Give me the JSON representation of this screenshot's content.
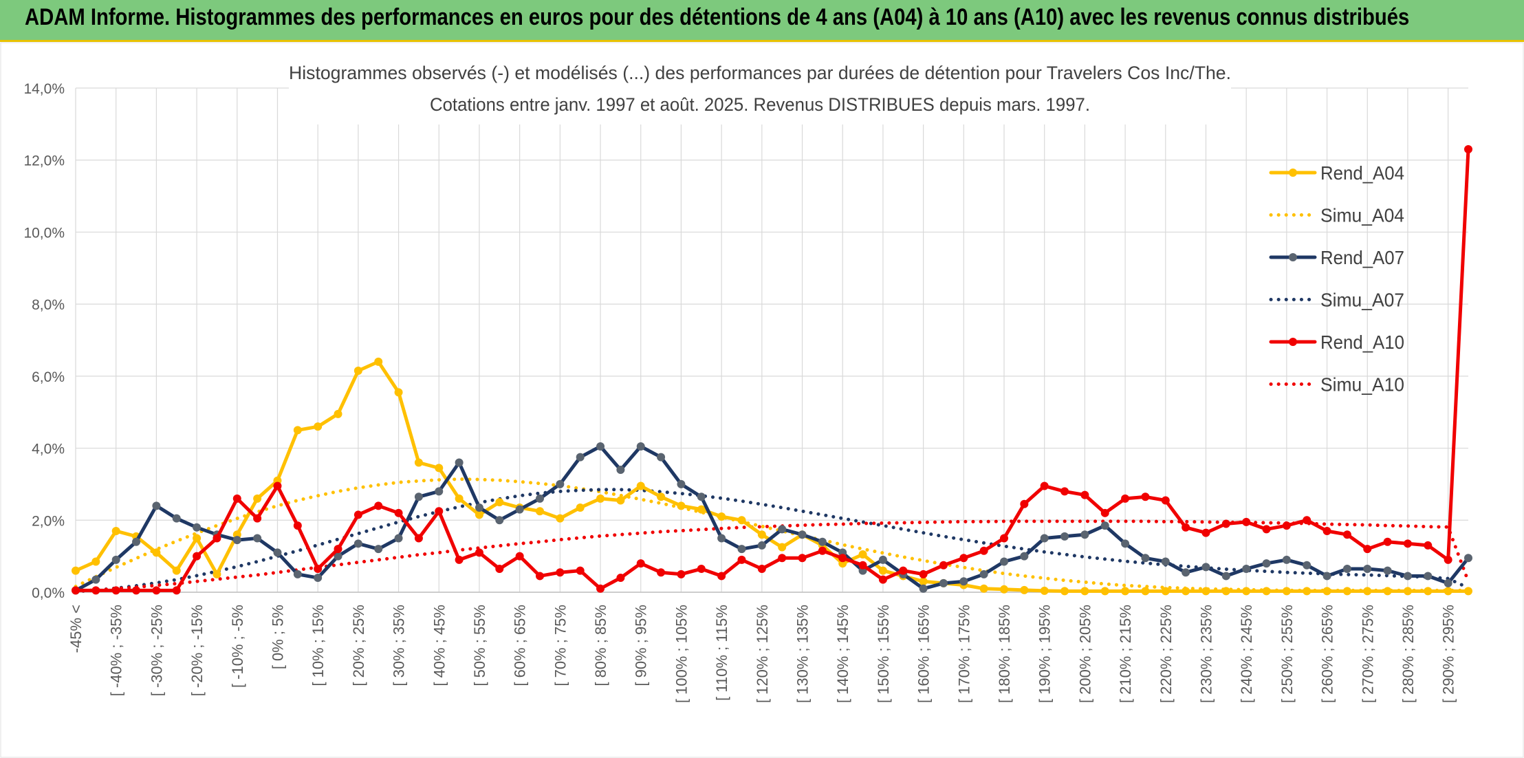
{
  "header": {
    "title": "ADAM Informe. Histogrammes des performances en euros pour des détentions de 4 ans (A04) à 10 ans (A10) avec les revenus connus distribués"
  },
  "colors": {
    "banner": "#7dc97d",
    "A04": "#ffc000",
    "A07": "#1f3864",
    "A07_marker": "#5a6470",
    "A10": "#f00000",
    "grid": "#d9d9d9"
  },
  "chart_data": {
    "type": "line",
    "title": "Histogrammes observés (-) et modélisés (...) des performances par durées de détention pour Travelers Cos Inc/The.",
    "subtitle": "Cotations entre janv. 1997 et août. 2025. Revenus DISTRIBUES depuis mars. 1997.",
    "ylim": [
      0,
      14
    ],
    "yticks": [
      "0,0%",
      "2,0%",
      "4,0%",
      "6,0%",
      "8,0%",
      "10,0%",
      "12,0%",
      "14,0%"
    ],
    "grid": true,
    "legend_position": "right",
    "x_labels": [
      "-45% <",
      "[ -40% ; -35%",
      "[ -30% ; -25%",
      "[ -20% ; -15%",
      "[ -10% ; -5%",
      "[ 0% ; 5%",
      "[ 10% ; 15%",
      "[ 20% ; 25%",
      "[ 30% ; 35%",
      "[ 40% ; 45%",
      "[ 50% ; 55%",
      "[ 60% ; 65%",
      "[ 70% ; 75%",
      "[ 80% ; 85%",
      "[ 90% ; 95%",
      "[ 100% ; 105%",
      "[ 110% ; 115%",
      "[ 120% ; 125%",
      "[ 130% ; 135%",
      "[ 140% ; 145%",
      "[ 150% ; 155%",
      "[ 160% ; 165%",
      "[ 170% ; 175%",
      "[ 180% ; 185%",
      "[ 190% ; 195%",
      "[ 200% ; 205%",
      "[ 210% ; 215%",
      "[ 220% ; 225%",
      "[ 230% ; 235%",
      "[ 240% ; 245%",
      "[ 250% ; 255%",
      "[ 260% ; 265%",
      "[ 270% ; 275%",
      "[ 280% ; 285%",
      "[ 290% ; 295%"
    ],
    "series": [
      {
        "name": "Rend_A04",
        "style": "solid",
        "color": "#ffc000",
        "values": [
          0.6,
          0.85,
          1.7,
          1.55,
          1.1,
          0.6,
          1.5,
          0.5,
          1.6,
          2.6,
          3.1,
          4.5,
          4.6,
          4.95,
          6.15,
          6.4,
          5.55,
          3.6,
          3.45,
          2.6,
          2.15,
          2.5,
          2.35,
          2.25,
          2.05,
          2.35,
          2.6,
          2.55,
          2.95,
          2.65,
          2.4,
          2.3,
          2.1,
          2.0,
          1.6,
          1.25,
          1.6,
          1.3,
          0.8,
          1.05,
          0.6,
          0.45,
          0.3,
          0.25,
          0.2,
          0.1,
          0.08,
          0.06,
          0.04,
          0.03,
          0.03,
          0.03,
          0.03,
          0.03,
          0.03,
          0.03,
          0.03,
          0.03,
          0.03,
          0.03,
          0.03,
          0.03,
          0.03,
          0.03,
          0.03,
          0.03,
          0.03,
          0.03,
          0.03,
          0.03
        ]
      },
      {
        "name": "Simu_A04",
        "style": "dotted",
        "color": "#ffc000",
        "values": [
          0.16,
          0.43,
          0.69,
          0.94,
          1.19,
          1.42,
          1.64,
          1.85,
          2.05,
          2.23,
          2.4,
          2.55,
          2.68,
          2.8,
          2.9,
          2.98,
          3.05,
          3.09,
          3.12,
          3.14,
          3.13,
          3.11,
          3.07,
          3.02,
          2.96,
          2.88,
          2.79,
          2.69,
          2.58,
          2.47,
          2.35,
          2.22,
          2.09,
          1.96,
          1.83,
          1.7,
          1.57,
          1.45,
          1.32,
          1.2,
          1.09,
          0.98,
          0.88,
          0.78,
          0.69,
          0.6,
          0.52,
          0.45,
          0.39,
          0.33,
          0.28,
          0.23,
          0.19,
          0.16,
          0.13,
          0.11,
          0.09,
          0.08,
          0.07,
          0.06,
          0.05,
          0.05,
          0.05,
          0.05,
          0.05,
          0.05,
          0.05,
          0.05,
          0.05,
          0.05
        ]
      },
      {
        "name": "Rend_A07",
        "style": "solid",
        "color": "#1f3864",
        "values": [
          0.05,
          0.35,
          0.9,
          1.4,
          2.4,
          2.05,
          1.8,
          1.6,
          1.45,
          1.5,
          1.1,
          0.5,
          0.4,
          1.0,
          1.35,
          1.2,
          1.5,
          2.65,
          2.8,
          3.6,
          2.35,
          2.0,
          2.3,
          2.6,
          3.0,
          3.75,
          4.05,
          3.4,
          4.05,
          3.75,
          3.0,
          2.65,
          1.5,
          1.2,
          1.3,
          1.75,
          1.6,
          1.4,
          1.1,
          0.6,
          0.9,
          0.5,
          0.1,
          0.25,
          0.3,
          0.5,
          0.85,
          1.0,
          1.5,
          1.55,
          1.6,
          1.85,
          1.35,
          0.95,
          0.85,
          0.55,
          0.7,
          0.45,
          0.65,
          0.8,
          0.9,
          0.75,
          0.45,
          0.65,
          0.65,
          0.6,
          0.45,
          0.45,
          0.25,
          0.95
        ]
      },
      {
        "name": "Simu_A07",
        "style": "dotted",
        "color": "#1f3864",
        "values": [
          0.02,
          0.06,
          0.11,
          0.18,
          0.26,
          0.35,
          0.46,
          0.58,
          0.71,
          0.85,
          1.0,
          1.15,
          1.31,
          1.47,
          1.63,
          1.79,
          1.95,
          2.1,
          2.24,
          2.37,
          2.49,
          2.59,
          2.68,
          2.75,
          2.8,
          2.83,
          2.85,
          2.85,
          2.83,
          2.79,
          2.74,
          2.68,
          2.61,
          2.53,
          2.44,
          2.35,
          2.25,
          2.15,
          2.05,
          1.95,
          1.85,
          1.75,
          1.65,
          1.55,
          1.46,
          1.37,
          1.28,
          1.2,
          1.12,
          1.05,
          0.98,
          0.92,
          0.86,
          0.81,
          0.76,
          0.72,
          0.68,
          0.64,
          0.61,
          0.58,
          0.55,
          0.53,
          0.51,
          0.49,
          0.48,
          0.46,
          0.44,
          0.42,
          0.38,
          0.12
        ]
      },
      {
        "name": "Rend_A10",
        "style": "solid",
        "color": "#f00000",
        "values": [
          0.05,
          0.05,
          0.05,
          0.05,
          0.05,
          0.05,
          1.0,
          1.5,
          2.6,
          2.05,
          2.95,
          1.85,
          0.65,
          1.2,
          2.15,
          2.4,
          2.2,
          1.5,
          2.25,
          0.9,
          1.1,
          0.65,
          1.0,
          0.45,
          0.55,
          0.6,
          0.1,
          0.4,
          0.8,
          0.55,
          0.5,
          0.65,
          0.45,
          0.9,
          0.65,
          0.95,
          0.95,
          1.15,
          0.95,
          0.75,
          0.35,
          0.6,
          0.5,
          0.75,
          0.95,
          1.15,
          1.5,
          2.45,
          2.95,
          2.8,
          2.7,
          2.2,
          2.6,
          2.65,
          2.55,
          1.8,
          1.65,
          1.9,
          1.95,
          1.75,
          1.85,
          2.0,
          1.7,
          1.6,
          1.2,
          1.4,
          1.35,
          1.3,
          0.9,
          12.3
        ]
      },
      {
        "name": "Simu_A10",
        "style": "dotted",
        "color": "#f00000",
        "values": [
          0.03,
          0.06,
          0.1,
          0.14,
          0.19,
          0.24,
          0.3,
          0.36,
          0.42,
          0.48,
          0.55,
          0.62,
          0.69,
          0.76,
          0.83,
          0.9,
          0.97,
          1.04,
          1.1,
          1.17,
          1.23,
          1.29,
          1.35,
          1.4,
          1.46,
          1.51,
          1.56,
          1.6,
          1.64,
          1.68,
          1.71,
          1.74,
          1.77,
          1.8,
          1.82,
          1.84,
          1.86,
          1.88,
          1.89,
          1.91,
          1.92,
          1.93,
          1.94,
          1.95,
          1.96,
          1.96,
          1.97,
          1.97,
          1.97,
          1.97,
          1.97,
          1.97,
          1.97,
          1.97,
          1.96,
          1.96,
          1.95,
          1.94,
          1.94,
          1.93,
          1.92,
          1.91,
          1.89,
          1.88,
          1.87,
          1.85,
          1.84,
          1.82,
          1.81,
          0.3
        ]
      }
    ]
  }
}
